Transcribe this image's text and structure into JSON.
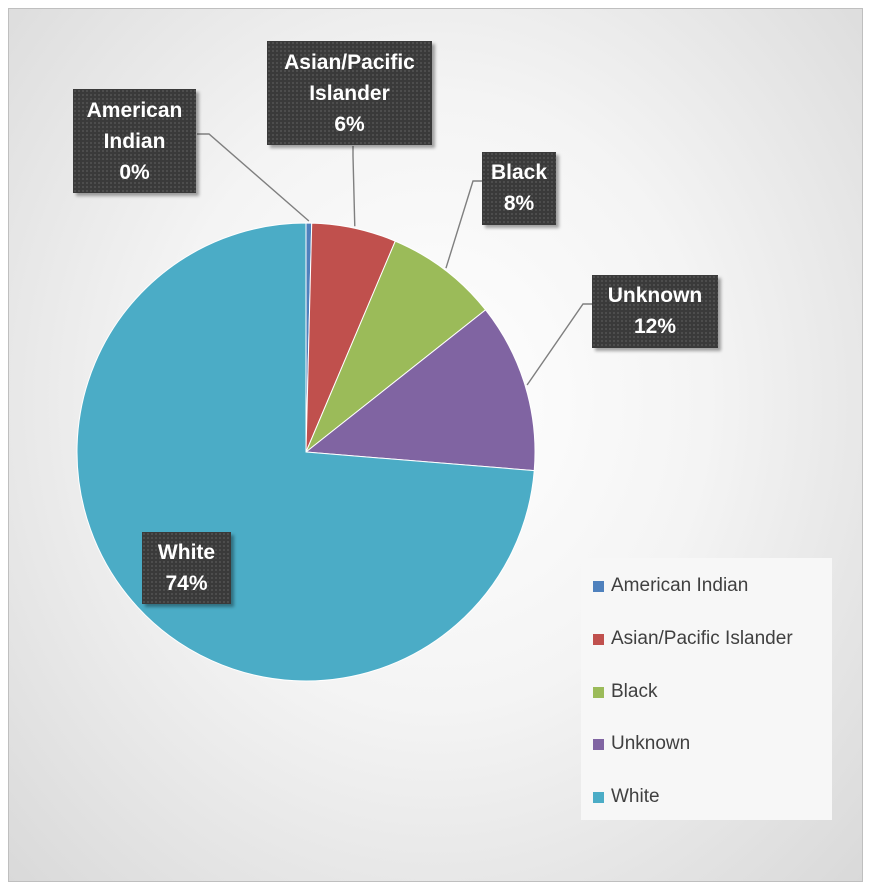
{
  "chart_data": {
    "type": "pie",
    "categories": [
      "American Indian",
      "Asian/Pacific Islander",
      "Black",
      "Unknown",
      "White"
    ],
    "values": [
      0.4,
      6,
      8,
      12,
      74
    ],
    "data_labels": [
      {
        "lines": [
          "American",
          "Indian",
          "0%"
        ]
      },
      {
        "lines": [
          "Asian/Pacific",
          "Islander",
          "6%"
        ]
      },
      {
        "lines": [
          "Black",
          "8%"
        ]
      },
      {
        "lines": [
          "Unknown",
          "12%"
        ]
      },
      {
        "lines": [
          "White",
          "74%"
        ]
      }
    ],
    "colors": [
      "#4f81bd",
      "#c0504d",
      "#9bbb59",
      "#8064a2",
      "#4bacc6"
    ],
    "legend": {
      "position": "right",
      "items": [
        "American Indian",
        "Asian/Pacific Islander",
        "Black",
        "Unknown",
        "White"
      ]
    }
  }
}
